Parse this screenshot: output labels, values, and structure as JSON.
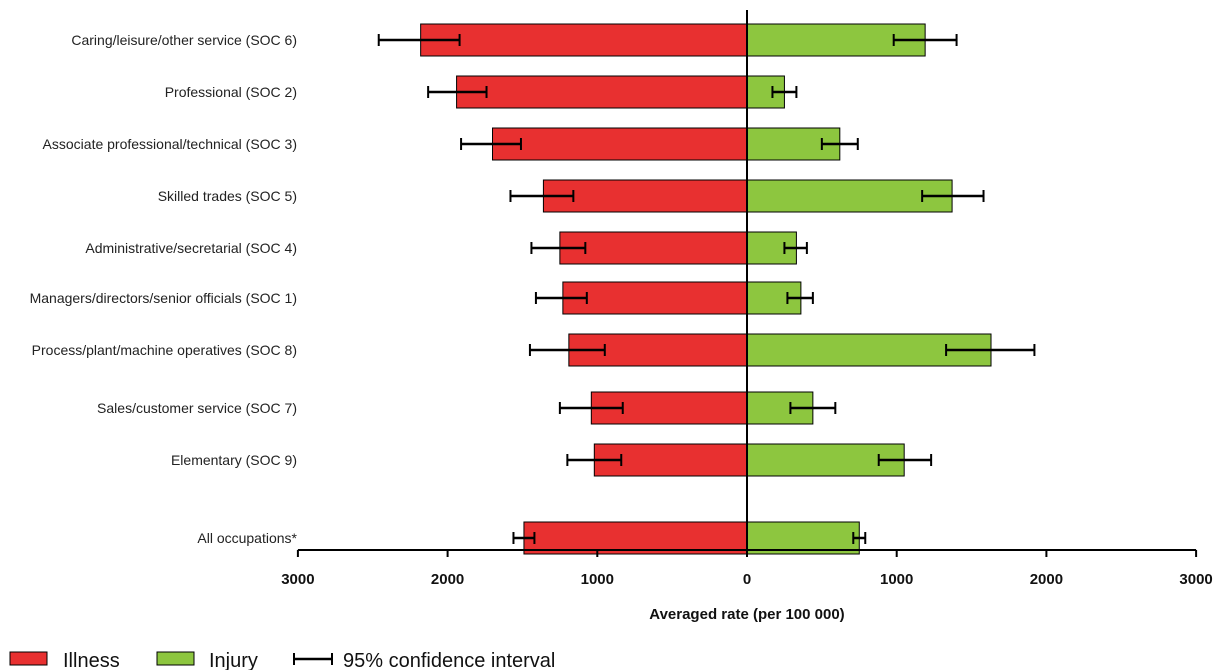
{
  "chart_data": {
    "type": "bar",
    "orientation": "horizontal-back-to-back",
    "xlabel": "Averaged rate (per 100 000)",
    "xlim": [
      -3000,
      3000
    ],
    "x_ticks": [
      -3000,
      -2000,
      -1000,
      0,
      1000,
      2000,
      3000
    ],
    "x_tick_labels": [
      "3000",
      "2000",
      "1000",
      "0",
      "1000",
      "2000",
      "3000"
    ],
    "categories": [
      "Caring/leisure/other service (SOC 6)",
      "Professional (SOC 2)",
      "Associate professional/technical (SOC 3)",
      "Skilled trades (SOC 5)",
      "Administrative/secretarial (SOC 4)",
      "Managers/directors/senior officials (SOC 1)",
      "Process/plant/machine operatives (SOC 8)",
      "Sales/customer service (SOC 7)",
      "Elementary (SOC 9)",
      "All occupations*"
    ],
    "series": [
      {
        "name": "Illness",
        "color": "#e83030",
        "direction": "left",
        "values": [
          2180,
          1940,
          1700,
          1360,
          1250,
          1230,
          1190,
          1040,
          1020,
          1490
        ],
        "ci_low": [
          1920,
          1740,
          1510,
          1160,
          1080,
          1070,
          950,
          830,
          840,
          1420
        ],
        "ci_high": [
          2460,
          2130,
          1910,
          1580,
          1440,
          1410,
          1450,
          1250,
          1200,
          1560
        ]
      },
      {
        "name": "Injury",
        "color": "#8dc63f",
        "direction": "right",
        "values": [
          1190,
          250,
          620,
          1370,
          330,
          360,
          1630,
          440,
          1050,
          750
        ],
        "ci_low": [
          980,
          170,
          500,
          1170,
          250,
          270,
          1330,
          290,
          880,
          710
        ],
        "ci_high": [
          1400,
          330,
          740,
          1580,
          400,
          440,
          1920,
          590,
          1230,
          790
        ]
      }
    ],
    "legend": {
      "placement": "bottom-left",
      "items": [
        {
          "label": "Illness",
          "kind": "swatch",
          "color": "#e83030"
        },
        {
          "label": "Injury",
          "kind": "swatch",
          "color": "#8dc63f"
        },
        {
          "label": "95% confidence interval",
          "kind": "errorbar",
          "color": "#000000"
        }
      ]
    }
  }
}
